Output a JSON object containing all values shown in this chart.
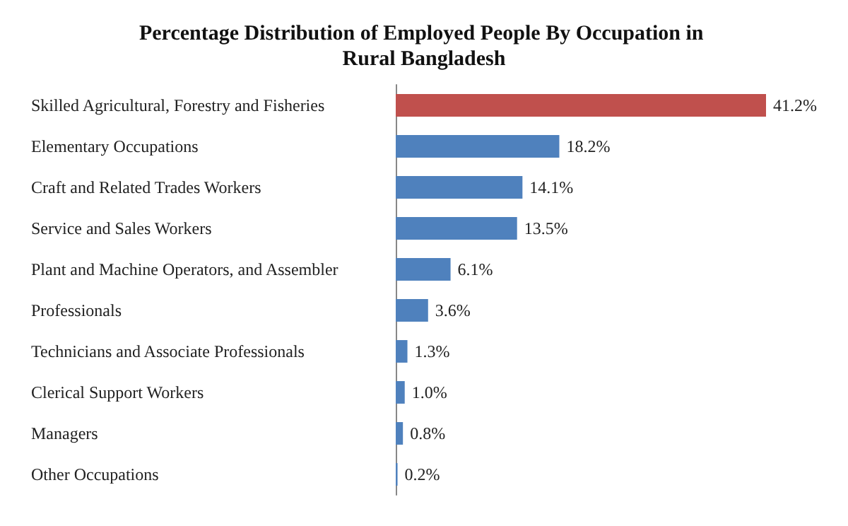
{
  "chart_data": {
    "type": "bar",
    "orientation": "horizontal",
    "title": "Percentage Distribution of Employed People By Occupation in Rural Bangladesh",
    "categories": [
      "Skilled Agricultural, Forestry and Fisheries",
      "Elementary Occupations",
      "Craft and Related Trades Workers",
      "Service and Sales Workers",
      "Plant and Machine Operators, and Assembler",
      "Professionals",
      "Technicians and Associate Professionals",
      "Clerical Support Workers",
      "Managers",
      "Other Occupations"
    ],
    "values": [
      41.2,
      18.2,
      14.1,
      13.5,
      6.1,
      3.6,
      1.3,
      1.0,
      0.8,
      0.2
    ],
    "value_labels": [
      "41.2%",
      "18.2%",
      "14.1%",
      "13.5%",
      "6.1%",
      "3.6%",
      "1.3%",
      "1.0%",
      "0.8%",
      "0.2%"
    ],
    "colors": [
      "#c0504d",
      "#4f81bd",
      "#4f81bd",
      "#4f81bd",
      "#4f81bd",
      "#4f81bd",
      "#4f81bd",
      "#4f81bd",
      "#4f81bd",
      "#4f81bd"
    ],
    "grid": false
  }
}
